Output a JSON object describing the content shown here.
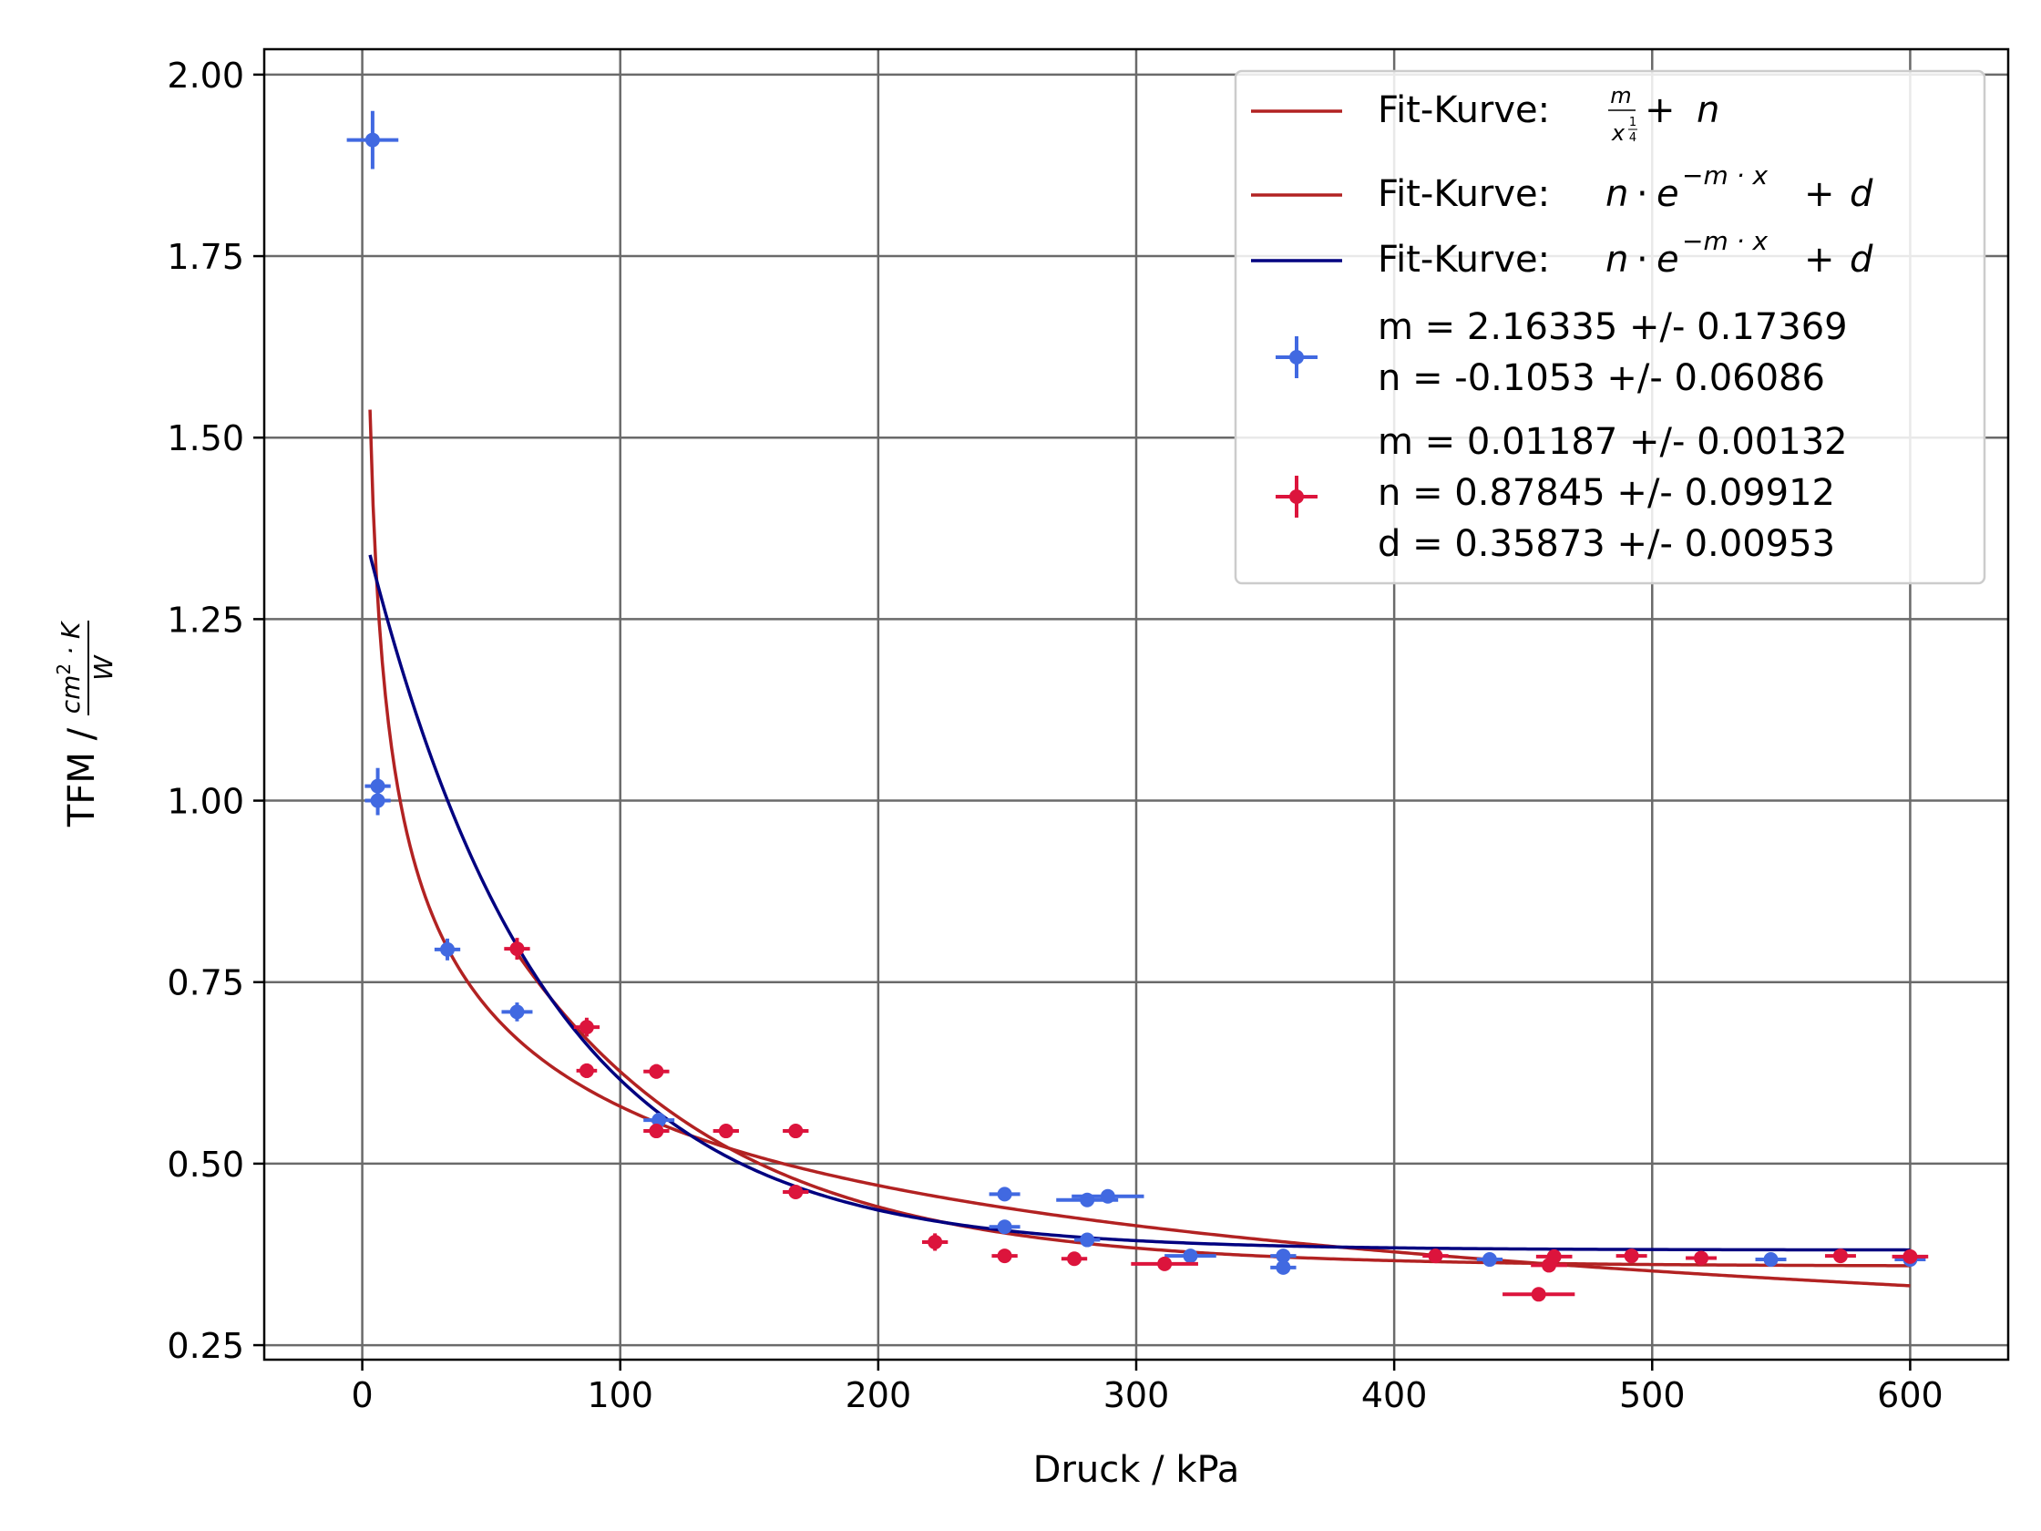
{
  "chart_data": {
    "type": "scatter",
    "xlabel": "Druck / kPa",
    "ylabel": "TFM / cm²·K/W",
    "xlim": [
      -38,
      638
    ],
    "ylim": [
      0.23,
      2.035
    ],
    "xticks": [
      0,
      100,
      200,
      300,
      400,
      500,
      600
    ],
    "yticks": [
      0.25,
      0.5,
      0.75,
      1.0,
      1.25,
      1.5,
      1.75,
      2.0
    ],
    "xtick_labels": [
      "0",
      "100",
      "200",
      "300",
      "400",
      "500",
      "600"
    ],
    "ytick_labels": [
      "0.25",
      "0.50",
      "0.75",
      "1.00",
      "1.25",
      "1.50",
      "1.75",
      "2.00"
    ],
    "grid": true,
    "legend_position": "top-right",
    "colors": {
      "blue_series": "#4169e1",
      "red_series": "#dc143c",
      "fit_red": "#b22222",
      "fit_navy": "#000080",
      "grid": "#6a6a6a"
    },
    "fit_curves": [
      {
        "name": "Fit-Kurve: m/x^(1/4) + n",
        "color": "#b22222",
        "model": "power",
        "params": {
          "m": 2.16335,
          "n": -0.1053
        },
        "x_range": [
          3,
          600
        ]
      },
      {
        "name": "Fit-Kurve: n·e^(−m·x) + d",
        "color": "#b22222",
        "model": "exp",
        "params": {
          "m": 0.01187,
          "n": 0.87845,
          "d": 0.35873
        },
        "x_range": [
          60,
          600
        ]
      },
      {
        "name": "Fit-Kurve: n·e^(−m·x) + d",
        "color": "#000080",
        "model": "exp",
        "params": {
          "m": 0.0145,
          "n": 1.0,
          "d": 0.381
        },
        "x_range": [
          3,
          600
        ]
      }
    ],
    "series": [
      {
        "color": "#4169e1",
        "points": [
          {
            "x": 4,
            "y": 1.91,
            "xerr": 10,
            "yerr": 0.04
          },
          {
            "x": 6,
            "y": 1.02,
            "xerr": 5,
            "yerr": 0.025
          },
          {
            "x": 6,
            "y": 1.0,
            "xerr": 5,
            "yerr": 0.02
          },
          {
            "x": 33,
            "y": 0.795,
            "xerr": 5,
            "yerr": 0.015
          },
          {
            "x": 60,
            "y": 0.709,
            "xerr": 6,
            "yerr": 0.013
          },
          {
            "x": 115,
            "y": 0.56,
            "xerr": 6,
            "yerr": 0.01
          },
          {
            "x": 249,
            "y": 0.458,
            "xerr": 6,
            "yerr": 0.008
          },
          {
            "x": 249,
            "y": 0.413,
            "xerr": 6,
            "yerr": 0.008
          },
          {
            "x": 281,
            "y": 0.45,
            "xerr": 12,
            "yerr": 0.008
          },
          {
            "x": 289,
            "y": 0.455,
            "xerr": 14,
            "yerr": 0.008
          },
          {
            "x": 281,
            "y": 0.395,
            "xerr": 5,
            "yerr": 0.007
          },
          {
            "x": 321,
            "y": 0.373,
            "xerr": 10,
            "yerr": 0.007
          },
          {
            "x": 357,
            "y": 0.373,
            "xerr": 5,
            "yerr": 0.007
          },
          {
            "x": 357,
            "y": 0.357,
            "xerr": 5,
            "yerr": 0.007
          },
          {
            "x": 437,
            "y": 0.368,
            "xerr": 5,
            "yerr": 0.006
          },
          {
            "x": 546,
            "y": 0.368,
            "xerr": 6,
            "yerr": 0.006
          },
          {
            "x": 600,
            "y": 0.368,
            "xerr": 6,
            "yerr": 0.006
          }
        ]
      },
      {
        "color": "#dc143c",
        "points": [
          {
            "x": 60,
            "y": 0.796,
            "xerr": 5,
            "yerr": 0.015
          },
          {
            "x": 87,
            "y": 0.688,
            "xerr": 5,
            "yerr": 0.013
          },
          {
            "x": 87,
            "y": 0.628,
            "xerr": 4,
            "yerr": 0.01
          },
          {
            "x": 114,
            "y": 0.627,
            "xerr": 5,
            "yerr": 0.01
          },
          {
            "x": 114,
            "y": 0.545,
            "xerr": 5,
            "yerr": 0.009
          },
          {
            "x": 141,
            "y": 0.545,
            "xerr": 5,
            "yerr": 0.009
          },
          {
            "x": 168,
            "y": 0.545,
            "xerr": 5,
            "yerr": 0.008
          },
          {
            "x": 168,
            "y": 0.461,
            "xerr": 5,
            "yerr": 0.008
          },
          {
            "x": 222,
            "y": 0.392,
            "xerr": 5,
            "yerr": 0.012
          },
          {
            "x": 249,
            "y": 0.373,
            "xerr": 5,
            "yerr": 0.007
          },
          {
            "x": 276,
            "y": 0.369,
            "xerr": 5,
            "yerr": 0.007
          },
          {
            "x": 311,
            "y": 0.362,
            "xerr": 13,
            "yerr": 0.007
          },
          {
            "x": 416,
            "y": 0.373,
            "xerr": 5,
            "yerr": 0.006
          },
          {
            "x": 456,
            "y": 0.32,
            "xerr": 14,
            "yerr": 0.006
          },
          {
            "x": 460,
            "y": 0.36,
            "xerr": 7,
            "yerr": 0.006
          },
          {
            "x": 462,
            "y": 0.372,
            "xerr": 7,
            "yerr": 0.006
          },
          {
            "x": 492,
            "y": 0.373,
            "xerr": 6,
            "yerr": 0.006
          },
          {
            "x": 519,
            "y": 0.37,
            "xerr": 6,
            "yerr": 0.006
          },
          {
            "x": 573,
            "y": 0.373,
            "xerr": 6,
            "yerr": 0.006
          },
          {
            "x": 600,
            "y": 0.372,
            "xerr": 7,
            "yerr": 0.006
          }
        ]
      }
    ],
    "legend": {
      "fit_prefix": "Fit-Kurve: ",
      "fit1_formula": {
        "m": "m",
        "x": "x",
        "exp_num": "1",
        "exp_den": "4",
        "plus": "+",
        "n": "n"
      },
      "fit2_formula": {
        "n": "n",
        "dot": "·",
        "e": "e",
        "exponent": "−m · x",
        "plus": "+",
        "d": "d"
      },
      "fit3_formula": {
        "n": "n",
        "dot": "·",
        "e": "e",
        "exponent": "−m · x",
        "plus": "+",
        "d": "d"
      },
      "blue_params": [
        "m = 2.16335 +/- 0.17369",
        "n = -0.1053 +/- 0.06086"
      ],
      "red_params": [
        "m = 0.01187 +/- 0.00132",
        "n = 0.87845 +/- 0.09912",
        "d = 0.35873 +/- 0.00953"
      ]
    },
    "ylabel_parts": {
      "prefix": "TFM / ",
      "num_cm": "cm",
      "num_exp": "2",
      "num_rest": " · K",
      "den": "W"
    }
  }
}
